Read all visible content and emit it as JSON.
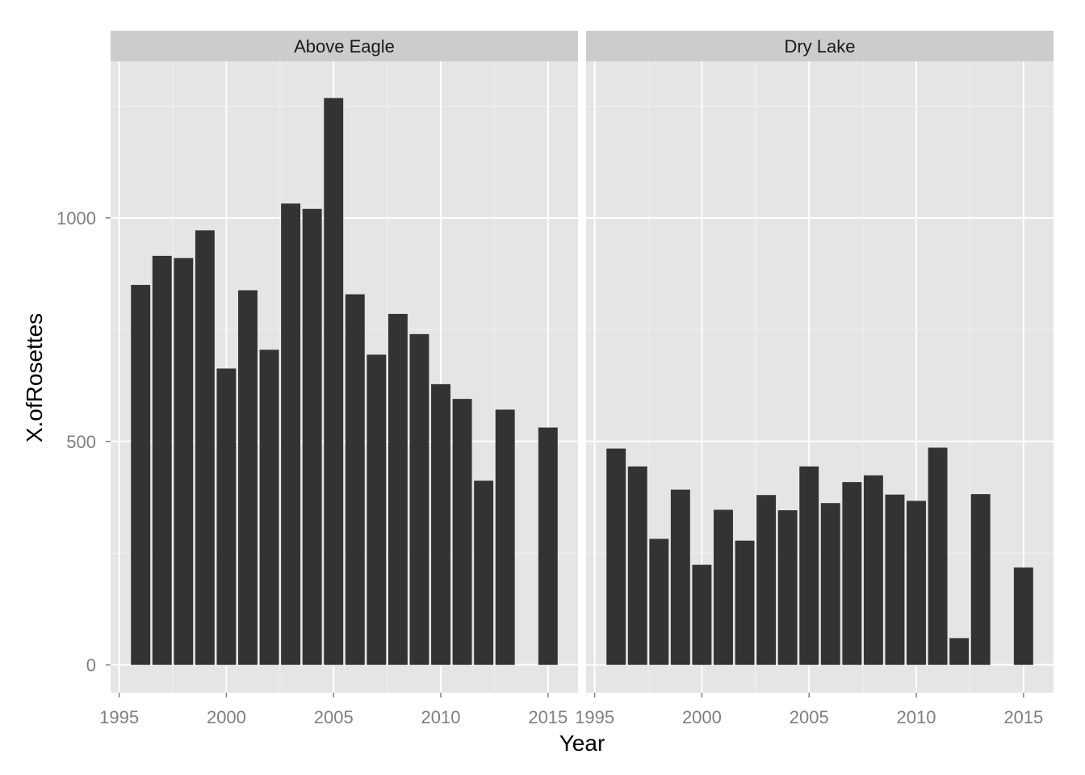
{
  "chart_data": {
    "type": "bar",
    "xlabel": "Year",
    "ylabel": "X.ofRosettes",
    "xlim": [
      1994.6,
      2016.4
    ],
    "ylim": [
      -62,
      1350
    ],
    "x_ticks": [
      1995,
      2000,
      2005,
      2010,
      2015
    ],
    "y_ticks": [
      0,
      500,
      1000
    ],
    "panels": [
      {
        "label": "Above Eagle",
        "x": [
          1996,
          1997,
          1998,
          1999,
          2000,
          2001,
          2002,
          2003,
          2004,
          2005,
          2006,
          2007,
          2008,
          2009,
          2010,
          2011,
          2012,
          2013,
          2015
        ],
        "values": [
          850,
          915,
          910,
          972,
          663,
          838,
          705,
          1032,
          1020,
          1268,
          829,
          694,
          785,
          740,
          628,
          595,
          412,
          571,
          531
        ]
      },
      {
        "label": "Dry Lake",
        "x": [
          1996,
          1997,
          1998,
          1999,
          2000,
          2001,
          2002,
          2003,
          2004,
          2005,
          2006,
          2007,
          2008,
          2009,
          2010,
          2011,
          2012,
          2013,
          2015
        ],
        "values": [
          484,
          444,
          282,
          392,
          224,
          347,
          278,
          380,
          346,
          444,
          362,
          409,
          424,
          381,
          367,
          486,
          60,
          382,
          218
        ]
      }
    ],
    "colors": {
      "bar": "#333333",
      "panel_background": "#e5e5e5",
      "grid_major": "#ffffff",
      "grid_minor": "#f2f2f2",
      "strip_background": "#cccccc"
    }
  }
}
